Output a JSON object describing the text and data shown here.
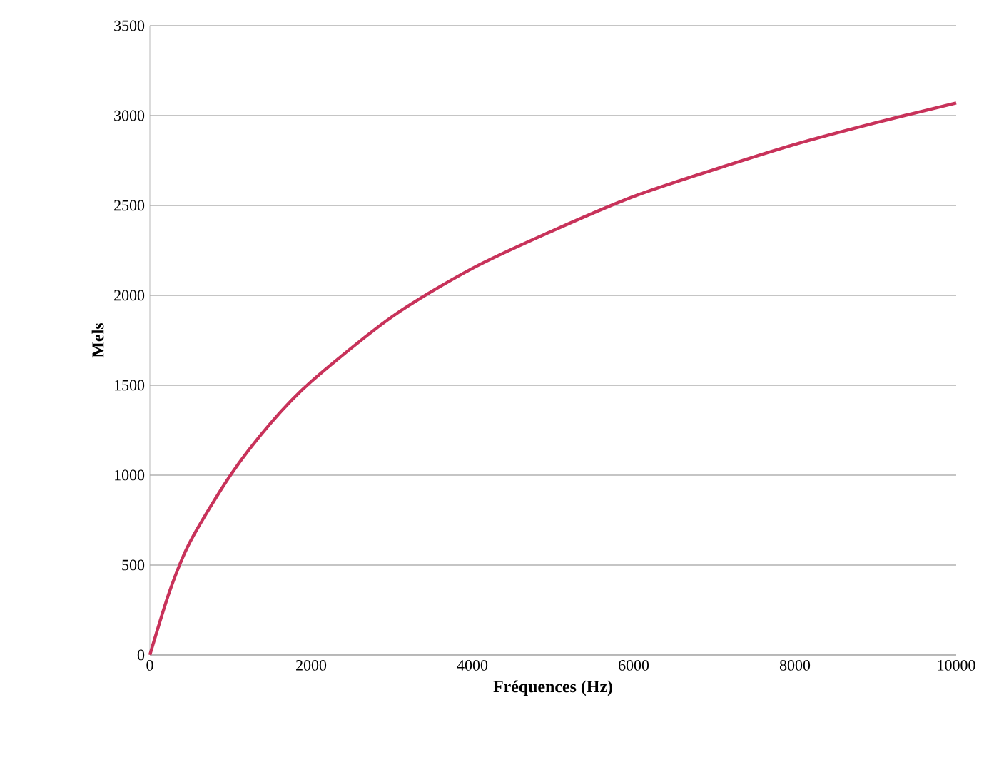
{
  "chart_data": {
    "type": "line",
    "xlabel": "Fréquences (Hz)",
    "ylabel": "Mels",
    "x": [
      0,
      250,
      500,
      1000,
      1500,
      2000,
      3000,
      4000,
      5000,
      6000,
      7000,
      8000,
      9000,
      10000
    ],
    "values": [
      0,
      360,
      630,
      1000,
      1290,
      1520,
      1880,
      2150,
      2360,
      2550,
      2700,
      2840,
      2960,
      3070
    ],
    "color": "#c8325a",
    "xlim": [
      0,
      10000
    ],
    "ylim": [
      0,
      3500
    ],
    "xticks": [
      0,
      2000,
      4000,
      6000,
      8000,
      10000
    ],
    "yticks": [
      0,
      500,
      1000,
      1500,
      2000,
      2500,
      3000,
      3500
    ],
    "grid": "y",
    "marker": "none",
    "line_style": "solid"
  }
}
